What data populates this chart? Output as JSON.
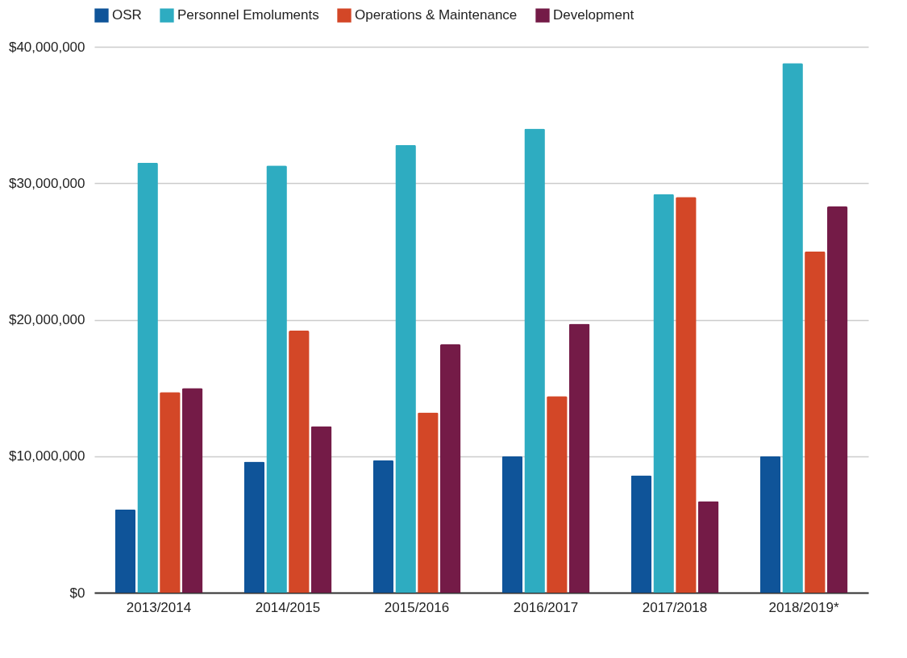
{
  "chart_data": {
    "type": "bar",
    "categories": [
      "2013/2014",
      "2014/2015",
      "2015/2016",
      "2016/2017",
      "2017/2018",
      "2018/2019*"
    ],
    "series": [
      {
        "name": "OSR",
        "color": "#0f5499",
        "values": [
          6100000,
          9600000,
          9700000,
          10000000,
          8600000,
          10000000
        ]
      },
      {
        "name": "Personnel Emoluments",
        "color": "#2eacc1",
        "values": [
          31500000,
          31300000,
          32800000,
          34000000,
          29200000,
          38800000
        ]
      },
      {
        "name": "Operations & Maintenance",
        "color": "#d34727",
        "values": [
          14700000,
          19200000,
          13200000,
          14400000,
          29000000,
          25000000
        ]
      },
      {
        "name": "Development",
        "color": "#741b47",
        "values": [
          15000000,
          12200000,
          18200000,
          19700000,
          6700000,
          28300000
        ]
      }
    ],
    "ylim": [
      0,
      40000000
    ],
    "yticks": [
      {
        "value": 0,
        "label": "$0"
      },
      {
        "value": 10000000,
        "label": "$10,000,000"
      },
      {
        "value": 20000000,
        "label": "$20,000,000"
      },
      {
        "value": 30000000,
        "label": "$30,000,000"
      },
      {
        "value": 40000000,
        "label": "$40,000,000"
      }
    ],
    "grid": "y",
    "legend": "top"
  }
}
